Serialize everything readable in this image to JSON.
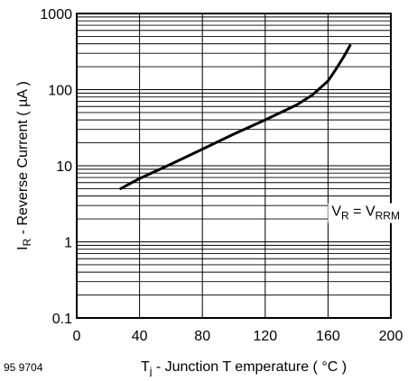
{
  "figure_code": "95 9704",
  "chart_data": {
    "type": "line",
    "title": "",
    "xlabel": {
      "main": "T",
      "sub": "j",
      "rest": " - Junction T emperature ( °C )"
    },
    "ylabel": {
      "main": "I",
      "sub": "R",
      "rest": " - Reverse Current ( µA )"
    },
    "xlim": [
      0,
      200
    ],
    "ylim": [
      0.1,
      1000
    ],
    "y_scale": "log",
    "grid": true,
    "x_ticks": [
      0,
      40,
      80,
      120,
      160,
      200
    ],
    "x_tick_labels": [
      "0",
      "40",
      "80",
      "120",
      "160",
      "200"
    ],
    "y_ticks": [
      0.1,
      1,
      10,
      100,
      1000
    ],
    "y_tick_labels": [
      "0.1",
      "1",
      "10",
      "100",
      "1000"
    ],
    "annotation": {
      "parts": [
        {
          "t": "V"
        },
        {
          "t": "R",
          "sub": true
        },
        {
          "t": " = V"
        },
        {
          "t": "RRM",
          "sub": true
        }
      ],
      "x": 184,
      "y": 2.2
    },
    "series": [
      {
        "x": [
          28,
          40,
          60,
          80,
          100,
          120,
          140,
          150,
          160,
          165,
          170,
          174
        ],
        "y": [
          5,
          6.8,
          10.5,
          16.5,
          26,
          40,
          63,
          85,
          130,
          185,
          270,
          380
        ]
      }
    ]
  }
}
